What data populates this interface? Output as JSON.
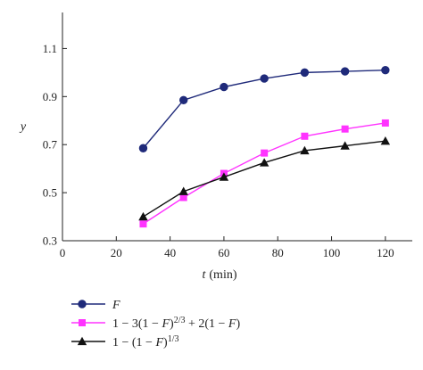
{
  "chart_data": {
    "type": "line",
    "xlabel_var": "t",
    "xlabel_unit": "(min)",
    "ylabel": "y",
    "xlim": [
      0,
      130
    ],
    "ylim": [
      0.3,
      1.25
    ],
    "xticks": [
      0,
      20,
      40,
      60,
      80,
      100,
      120
    ],
    "yticks": [
      0.3,
      0.5,
      0.7,
      0.9,
      1.1
    ],
    "xtick_labels": [
      "0",
      "20",
      "40",
      "60",
      "80",
      "100",
      "120"
    ],
    "ytick_labels": [
      "0.3",
      "0.5",
      "0.7",
      "0.9",
      "1.1"
    ],
    "grid": false,
    "legend_position": "bottom-left",
    "x": [
      30,
      45,
      60,
      75,
      90,
      105,
      120
    ],
    "series": [
      {
        "name": "F",
        "marker": "circle",
        "color": "#1f2a7a",
        "values": [
          0.685,
          0.885,
          0.94,
          0.975,
          1.0,
          1.005,
          1.01
        ]
      },
      {
        "name": "1 − 3(1 − F)^2/3 + 2(1 − F)",
        "marker": "square",
        "color": "#ff33ff",
        "values": [
          0.37,
          0.48,
          0.58,
          0.665,
          0.735,
          0.765,
          0.79
        ]
      },
      {
        "name": "1 − (1 − F)^1/3",
        "marker": "triangle",
        "color": "#111111",
        "values": [
          0.4,
          0.505,
          0.565,
          0.625,
          0.675,
          0.695,
          0.715
        ]
      }
    ]
  },
  "legend": {
    "items": [
      {
        "parts": [
          {
            "t": "F",
            "italic": true
          }
        ]
      },
      {
        "parts": [
          {
            "t": "1 − 3(1 − "
          },
          {
            "t": "F",
            "italic": true
          },
          {
            "t": ")"
          },
          {
            "t": "2/3",
            "sup": true
          },
          {
            "t": " + 2(1 − "
          },
          {
            "t": "F",
            "italic": true
          },
          {
            "t": ")"
          }
        ]
      },
      {
        "parts": [
          {
            "t": "1 − (1 − "
          },
          {
            "t": "F",
            "italic": true
          },
          {
            "t": ")"
          },
          {
            "t": "1/3",
            "sup": true
          }
        ]
      }
    ]
  }
}
